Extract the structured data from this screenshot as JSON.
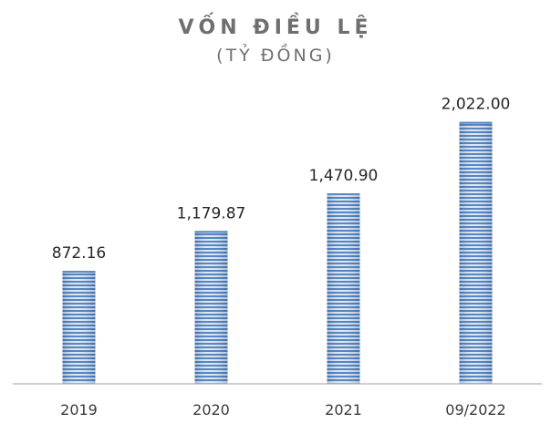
{
  "chart_data": {
    "type": "bar",
    "title": "VỐN ĐIỀU LỆ",
    "subtitle": "(TỶ ĐỒNG)",
    "categories": [
      "2019",
      "2020",
      "2021",
      "09/2022"
    ],
    "values": [
      872.16,
      1179.87,
      1470.9,
      2022.0
    ],
    "value_labels": [
      "872.16",
      "1,179.87",
      "1,470.90",
      "2,022.00"
    ],
    "ylim": [
      0,
      2400
    ],
    "grid": false,
    "bar_color": "#5b8ac4",
    "axis_color": "#bfbfbf"
  }
}
